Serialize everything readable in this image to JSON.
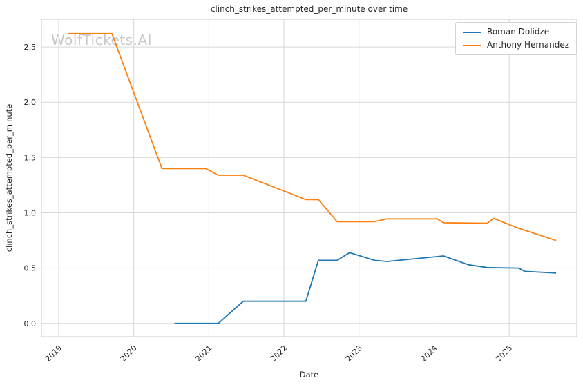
{
  "watermark": "WolfTickets.AI",
  "chart_data": {
    "type": "line",
    "title": "clinch_strikes_attempted_per_minute over time",
    "xlabel": "Date",
    "ylabel": "clinch_strikes_attempted_per_minute",
    "x_ticks": [
      2019,
      2020,
      2021,
      2022,
      2023,
      2024,
      2025
    ],
    "y_ticks": [
      0.0,
      0.5,
      1.0,
      1.5,
      2.0,
      2.5
    ],
    "xlim": [
      2018.77,
      2025.9
    ],
    "ylim": [
      -0.12,
      2.75
    ],
    "grid": true,
    "legend_position": "upper right",
    "grid_color": "#d7d7d7",
    "spine_color": "#c9c9c9",
    "series": [
      {
        "name": "Roman Dolidze",
        "color": "#1f77b4",
        "points": [
          [
            "2020-07",
            0.0
          ],
          [
            "2021-02",
            0.0
          ],
          [
            "2021-06",
            0.2
          ],
          [
            "2022-04",
            0.2
          ],
          [
            "2022-06",
            0.57
          ],
          [
            "2022-09",
            0.57
          ],
          [
            "2022-11",
            0.64
          ],
          [
            "2023-03",
            0.57
          ],
          [
            "2023-05",
            0.56
          ],
          [
            "2024-02",
            0.61
          ],
          [
            "2024-06",
            0.53
          ],
          [
            "2024-09",
            0.505
          ],
          [
            "2025-02",
            0.5
          ],
          [
            "2025-03",
            0.47
          ],
          [
            "2025-08",
            0.455
          ]
        ]
      },
      {
        "name": "Anthony Hernandez",
        "color": "#ff7f0e",
        "points": [
          [
            "2019-02",
            2.62
          ],
          [
            "2019-09",
            2.62
          ],
          [
            "2020-05",
            1.4
          ],
          [
            "2020-12",
            1.4
          ],
          [
            "2021-02",
            1.34
          ],
          [
            "2021-06",
            1.34
          ],
          [
            "2022-04",
            1.12
          ],
          [
            "2022-06",
            1.12
          ],
          [
            "2022-09",
            0.92
          ],
          [
            "2023-03",
            0.92
          ],
          [
            "2023-05",
            0.945
          ],
          [
            "2024-01",
            0.945
          ],
          [
            "2024-02",
            0.91
          ],
          [
            "2024-09",
            0.905
          ],
          [
            "2024-10",
            0.95
          ],
          [
            "2025-02",
            0.86
          ],
          [
            "2025-08",
            0.75
          ]
        ]
      }
    ]
  }
}
